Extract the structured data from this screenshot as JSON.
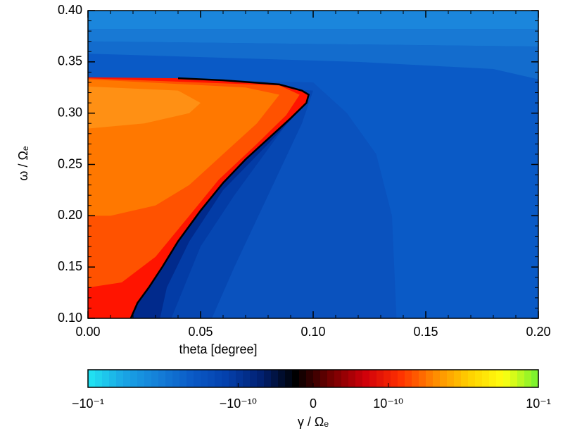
{
  "chart_data": {
    "type": "contour",
    "xlabel": "theta [degree]",
    "ylabel": "ω / Ωₑ",
    "xlim": [
      0,
      0.2
    ],
    "ylim": [
      0.1,
      0.4
    ],
    "xticks": [
      {
        "value": 0,
        "label": "0.00"
      },
      {
        "value": 0.05,
        "label": "0.05"
      },
      {
        "value": 0.1,
        "label": "0.10"
      },
      {
        "value": 0.15,
        "label": "0.15"
      },
      {
        "value": 0.2,
        "label": "0.20"
      }
    ],
    "yticks": [
      {
        "value": 0.1,
        "label": "0.10"
      },
      {
        "value": 0.15,
        "label": "0.15"
      },
      {
        "value": 0.2,
        "label": "0.20"
      },
      {
        "value": 0.25,
        "label": "0.25"
      },
      {
        "value": 0.3,
        "label": "0.30"
      },
      {
        "value": 0.35,
        "label": "0.35"
      },
      {
        "value": 0.4,
        "label": "0.40"
      }
    ],
    "contours": [
      {
        "color": "#0a5ac6",
        "theta": [
          0,
          0.2,
          0.2,
          0
        ],
        "omega": [
          0.4,
          0.4,
          0.1,
          0.1
        ]
      },
      {
        "color": "#136ccd",
        "theta": [
          0,
          0.2,
          0.2,
          0.18,
          0.12,
          0
        ],
        "omega": [
          0.37,
          0.365,
          0.333,
          0.343,
          0.35,
          0.358
        ]
      },
      {
        "color": "#1879d4",
        "theta": [
          0,
          0.2,
          0.2,
          0
        ],
        "omega": [
          0.382,
          0.382,
          0.365,
          0.37
        ]
      },
      {
        "color": "#1b86dc",
        "theta": [
          0,
          0.2,
          0.2,
          0
        ],
        "omega": [
          0.4,
          0.4,
          0.382,
          0.382
        ]
      },
      {
        "color": "#0a52be",
        "theta": [
          0,
          0.1,
          0.115,
          0.128,
          0.135,
          0.137,
          0
        ],
        "omega": [
          0.335,
          0.33,
          0.3,
          0.26,
          0.2,
          0.1,
          0.1
        ]
      },
      {
        "color": "#0647b2",
        "theta": [
          0,
          0.1,
          0.095,
          0.08,
          0.065,
          0.055,
          0
        ],
        "omega": [
          0.335,
          0.322,
          0.29,
          0.22,
          0.15,
          0.1,
          0.1
        ]
      },
      {
        "color": "#033ca6",
        "theta": [
          0,
          0.098,
          0.085,
          0.065,
          0.05,
          0.037,
          0
        ],
        "omega": [
          0.335,
          0.318,
          0.28,
          0.22,
          0.17,
          0.1,
          0.1
        ]
      },
      {
        "color": "#012a8c",
        "theta": [
          0,
          0.097,
          0.08,
          0.06,
          0.045,
          0.035,
          0.032,
          0
        ],
        "omega": [
          0.335,
          0.31,
          0.27,
          0.225,
          0.175,
          0.13,
          0.1,
          0.1
        ]
      },
      {
        "color": "#ff1400",
        "theta": [
          0,
          0.04,
          0.06,
          0.085,
          0.095,
          0.098,
          0.097,
          0.09,
          0.08,
          0.07,
          0.06,
          0.05,
          0.04,
          0.033,
          0.027,
          0.022,
          0.019,
          0
        ],
        "omega": [
          0.335,
          0.334,
          0.332,
          0.328,
          0.322,
          0.318,
          0.31,
          0.295,
          0.275,
          0.255,
          0.232,
          0.205,
          0.175,
          0.15,
          0.13,
          0.115,
          0.1,
          0.1
        ]
      },
      {
        "color": "#ff5200",
        "theta": [
          0,
          0.085,
          0.094,
          0.088,
          0.075,
          0.058,
          0.045,
          0.03,
          0.015,
          0
        ],
        "omega": [
          0.334,
          0.327,
          0.318,
          0.298,
          0.27,
          0.235,
          0.2,
          0.16,
          0.135,
          0.13
        ]
      },
      {
        "color": "#ff7800",
        "theta": [
          0,
          0.07,
          0.085,
          0.075,
          0.06,
          0.045,
          0.03,
          0.01,
          0
        ],
        "omega": [
          0.333,
          0.325,
          0.318,
          0.29,
          0.26,
          0.23,
          0.21,
          0.2,
          0.2
        ]
      },
      {
        "color": "#ff9014",
        "theta": [
          0,
          0.04,
          0.05,
          0.045,
          0.025,
          0
        ],
        "omega": [
          0.326,
          0.322,
          0.31,
          0.3,
          0.29,
          0.285
        ]
      }
    ],
    "boundary": {
      "color": "#000000",
      "contour": 8
    },
    "colorbar": {
      "label": "γ / Ωₑ",
      "scale": "symlog",
      "clim": [
        -0.1,
        0.1
      ],
      "linthresh": 1e-10,
      "colors": [
        "#22e6f2",
        "#1aa6e6",
        "#1580d8",
        "#0a5ac6",
        "#0440ac",
        "#012070",
        "#000000",
        "#700000",
        "#d0000a",
        "#ff3000",
        "#ff8a00",
        "#ffd000",
        "#ffff10",
        "#70f030"
      ],
      "ticks": [
        {
          "value": -0.1,
          "label": "−10⁻¹"
        },
        {
          "value": -1e-10,
          "label": "−10⁻¹⁰"
        },
        {
          "value": 0,
          "label": "0"
        },
        {
          "value": 1e-10,
          "label": "10⁻¹⁰"
        },
        {
          "value": 0.1,
          "label": "10⁻¹"
        }
      ]
    }
  }
}
